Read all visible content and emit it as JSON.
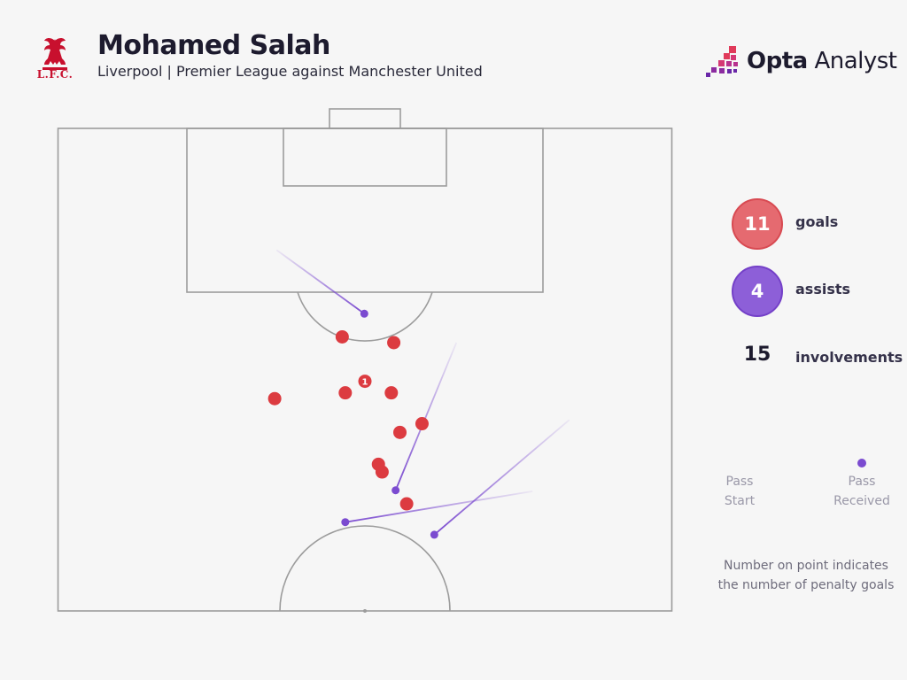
{
  "header": {
    "club_crest_text": "L.F.C.",
    "player_name": "Mohamed Salah",
    "subtitle": "Liverpool | Premier League against Manchester United",
    "brand_bold": "Opta",
    "brand_rest": " Analyst"
  },
  "stats": {
    "goals": {
      "value": "11",
      "label": "goals",
      "color": "#e56a70"
    },
    "assists": {
      "value": "4",
      "label": "assists",
      "color": "#8d5fd8"
    },
    "involvements": {
      "value": "15",
      "label": "involvements"
    }
  },
  "legend": {
    "start_label_1": "Pass",
    "start_label_2": "Start",
    "end_label_1": "Pass",
    "end_label_2": "Received"
  },
  "note": {
    "line1": "Number on point indicates",
    "line2": "the number of penalty goals"
  },
  "chart_data": {
    "type": "scatter",
    "pitch_view": "attacking half",
    "shots_goals": [
      {
        "x": 56.8,
        "y": 38.9
      },
      {
        "x": 52.8,
        "y": 35.6
      },
      {
        "x": 52.2,
        "y": 34.8
      },
      {
        "x": 55.7,
        "y": 31.5
      },
      {
        "x": 59.3,
        "y": 30.6
      },
      {
        "x": 35.3,
        "y": 28.0
      },
      {
        "x": 46.8,
        "y": 27.4
      },
      {
        "x": 50.0,
        "y": 26.2,
        "penalty_goals": 1
      },
      {
        "x": 54.3,
        "y": 27.4
      },
      {
        "x": 46.3,
        "y": 21.6
      },
      {
        "x": 54.7,
        "y": 22.2
      }
    ],
    "assists": [
      {
        "start": {
          "x": 83.3,
          "y": 30.2
        },
        "received": {
          "x": 61.3,
          "y": 42.1
        }
      },
      {
        "start": {
          "x": 77.3,
          "y": 37.6
        },
        "received": {
          "x": 46.8,
          "y": 40.8
        }
      },
      {
        "start": {
          "x": 64.9,
          "y": 22.2
        },
        "received": {
          "x": 55.0,
          "y": 37.5
        }
      },
      {
        "start": {
          "x": 35.6,
          "y": 12.6
        },
        "received": {
          "x": 49.9,
          "y": 19.2
        }
      }
    ],
    "legend": [
      "Pass Start",
      "Pass Received"
    ]
  }
}
